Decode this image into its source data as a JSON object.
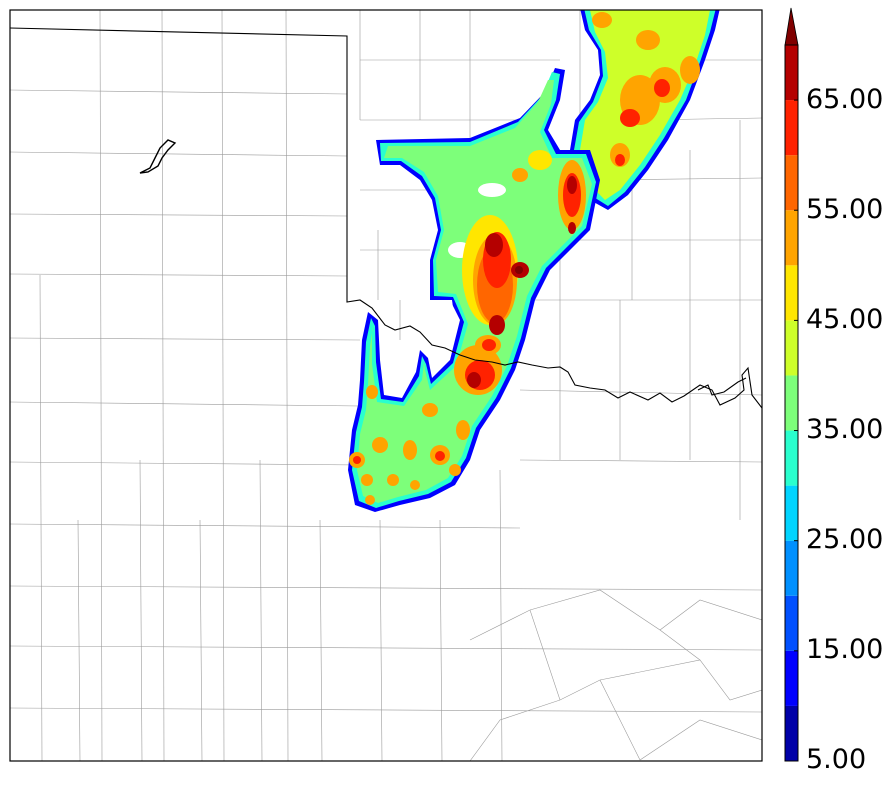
{
  "colorbar": {
    "tick_labels": [
      "5.00",
      "15.00",
      "25.00",
      "35.00",
      "45.00",
      "55.00",
      "65.00"
    ],
    "levels": [
      5,
      10,
      15,
      20,
      25,
      30,
      35,
      40,
      45,
      50,
      55,
      60,
      65,
      70
    ],
    "extend": "max",
    "colors": [
      "#0000a8",
      "#0000ff",
      "#0050ff",
      "#0090ff",
      "#00d4ff",
      "#29ffce",
      "#7dff7a",
      "#ceff29",
      "#ffe600",
      "#ffa400",
      "#ff6600",
      "#ff2200",
      "#b40000",
      "#800000"
    ]
  },
  "map": {
    "background": "#ffffff",
    "state_border_color": "#000000",
    "county_border_color": "#999999"
  }
}
